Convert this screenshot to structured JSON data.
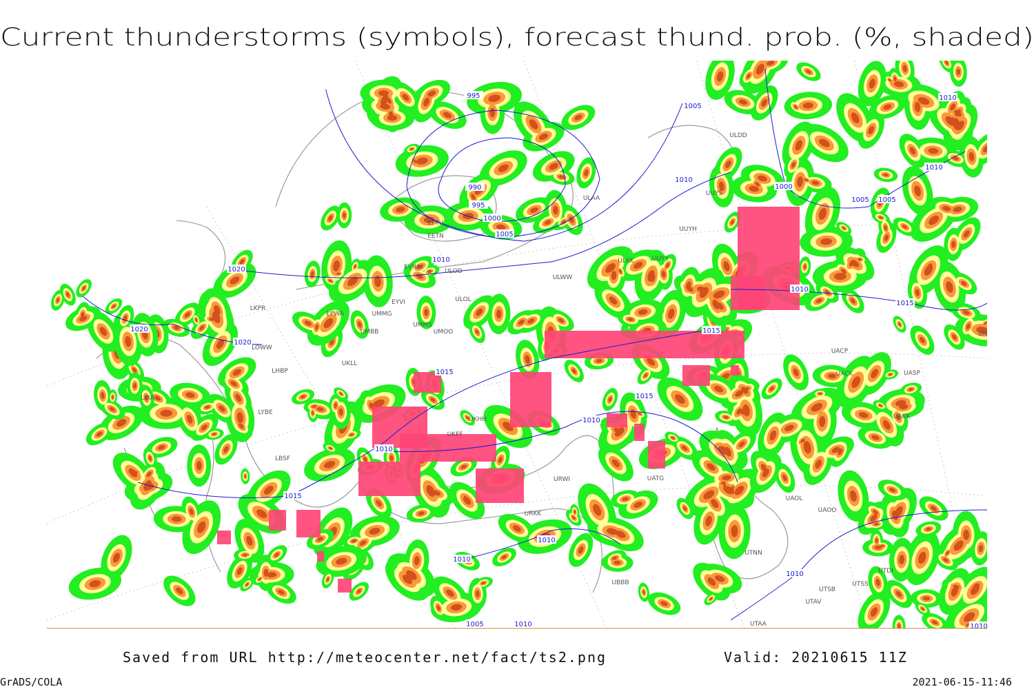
{
  "title": "Current thunderstorms (symbols), forecast thund. prob. (%, shaded)",
  "footer": {
    "source": "Saved from URL http://meteocenter.net/fact/ts2.png",
    "valid": "Valid: 20210615 11Z",
    "software": "GrADS/COLA",
    "timestamp": "2021-06-15-11:46"
  },
  "isobar_labels": [
    "995",
    "990",
    "995",
    "1000",
    "1005",
    "1005",
    "1010",
    "1010",
    "1020",
    "1020",
    "1020",
    "1015",
    "1015",
    "1010",
    "1015",
    "1010",
    "1010",
    "1010",
    "1005",
    "1010",
    "1000",
    "1005",
    "1010",
    "1015",
    "1015",
    "1010",
    "1010",
    "1010",
    "1005",
    "1010"
  ],
  "stations": [
    "ULAA",
    "UUYS",
    "UUYH",
    "ULKK",
    "UUYY",
    "ULWW",
    "ULOL",
    "ULOD",
    "EVRA",
    "EETN",
    "EFTU",
    "ULDD",
    "EPWA",
    "EYVI",
    "UMMG",
    "UMMS",
    "UMBB",
    "UMOO",
    "UKLL",
    "UKHH",
    "UKFF",
    "LKPR",
    "LOWW",
    "LHBP",
    "LYBE",
    "LBSF",
    "LIRA",
    "UBBB",
    "UTAA",
    "UTNN",
    "UAOL",
    "UAOO",
    "UACK",
    "UAKK",
    "UNBB",
    "UASP",
    "UTSS",
    "UTSB",
    "UTAV",
    "UATG",
    "URWI",
    "URKK",
    "UACP",
    "UTDI"
  ]
}
